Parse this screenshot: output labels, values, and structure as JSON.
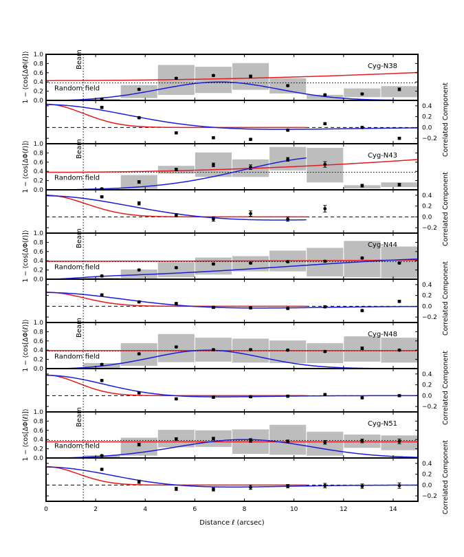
{
  "chart_data": {
    "type": "scatter",
    "xlabel": "Distance ℓ (arcsec)",
    "ylabel_left": "1 − ⟨cos[ΔΦ(ℓ)]⟩",
    "ylabel_right": "Correlated Component",
    "xlim": [
      0,
      15
    ],
    "xticks": [
      "0",
      "2",
      "4",
      "6",
      "8",
      "10",
      "12",
      "14"
    ],
    "top_ylim": [
      0,
      1.0
    ],
    "top_yticks": [
      "0.0",
      "0.2",
      "0.4",
      "0.6",
      "0.8",
      "1.0"
    ],
    "bottom_ylim": [
      -0.3,
      0.5
    ],
    "bottom_yticks": [
      "−0.2",
      "0.0",
      "0.2",
      "0.4"
    ],
    "beam_x": 1.5,
    "beam_label": "Beam",
    "random_field_label": "Random field",
    "random_field_level": 0.38,
    "bin_edges": [
      1.5,
      3.0,
      4.5,
      6.0,
      7.5,
      9.0,
      10.5,
      12.0,
      13.5,
      15.0
    ],
    "panels": [
      {
        "name": "Cyg-N38",
        "bars": [
          [
            0.0,
            0.03
          ],
          [
            0.05,
            0.33
          ],
          [
            0.12,
            0.77
          ],
          [
            0.16,
            0.73
          ],
          [
            0.23,
            0.81
          ],
          [
            0.15,
            0.48
          ],
          [
            0.03,
            0.12
          ],
          [
            0.07,
            0.26
          ],
          [
            0.07,
            0.31
          ]
        ],
        "points": [
          {
            "x": 2.25,
            "y": 0.03,
            "err": 0.02
          },
          {
            "x": 3.75,
            "y": 0.24,
            "err": 0.02
          },
          {
            "x": 5.25,
            "y": 0.48,
            "err": 0.02
          },
          {
            "x": 6.75,
            "y": 0.54,
            "err": 0.02
          },
          {
            "x": 8.25,
            "y": 0.52,
            "err": 0.03
          },
          {
            "x": 9.75,
            "y": 0.32,
            "err": 0.02
          },
          {
            "x": 11.25,
            "y": 0.12,
            "err": 0.02
          },
          {
            "x": 12.75,
            "y": 0.14,
            "err": 0.02
          },
          {
            "x": 14.25,
            "y": 0.24,
            "err": 0.03
          }
        ],
        "red_fit": {
          "c": 0.43,
          "a": 0.05,
          "s": 8
        },
        "blue_fit": {
          "peak": 0.4,
          "mu": 7.0,
          "sigma": 2.4,
          "x_end": 15
        },
        "residuals": [
          {
            "x": 2.25,
            "y": 0.37,
            "err": 0.02
          },
          {
            "x": 3.75,
            "y": 0.18,
            "err": 0.02
          },
          {
            "x": 5.25,
            "y": -0.1,
            "err": 0.02
          },
          {
            "x": 6.75,
            "y": -0.19,
            "err": 0.02
          },
          {
            "x": 8.25,
            "y": -0.22,
            "err": 0.02
          },
          {
            "x": 9.75,
            "y": -0.05,
            "err": 0.02
          },
          {
            "x": 11.25,
            "y": 0.07,
            "err": 0.02
          },
          {
            "x": 12.75,
            "y": 0.0,
            "err": 0.02
          },
          {
            "x": 14.25,
            "y": -0.2,
            "err": 0.02
          }
        ],
        "red_resid": {
          "amp": 0.43,
          "sigma": 1.5
        },
        "blue_resid": {
          "amp": 0.43,
          "sigma": 3.2,
          "dip": 0.045,
          "x_end": 15
        }
      },
      {
        "name": "Cyg-N43",
        "bars": [
          [
            0.0,
            0.03
          ],
          [
            0.02,
            0.32
          ],
          [
            0.35,
            0.52
          ],
          [
            0.28,
            0.81
          ],
          [
            0.28,
            0.66
          ],
          [
            0.42,
            0.93
          ],
          [
            0.16,
            0.91
          ],
          [
            0.03,
            0.1
          ],
          [
            0.06,
            0.16
          ]
        ],
        "points": [
          {
            "x": 2.25,
            "y": 0.02,
            "err": 0.02
          },
          {
            "x": 3.75,
            "y": 0.17,
            "err": 0.03
          },
          {
            "x": 5.25,
            "y": 0.44,
            "err": 0.03
          },
          {
            "x": 6.75,
            "y": 0.54,
            "err": 0.04
          },
          {
            "x": 8.25,
            "y": 0.49,
            "err": 0.05
          },
          {
            "x": 9.75,
            "y": 0.66,
            "err": 0.04
          },
          {
            "x": 11.25,
            "y": 0.55,
            "err": 0.06
          },
          {
            "x": 12.75,
            "y": 0.09,
            "err": 0.03
          },
          {
            "x": 14.25,
            "y": 0.11,
            "err": 0.03
          }
        ],
        "red_fit": {
          "c": 0.38,
          "a": 0.4,
          "s": 18
        },
        "blue_fit": {
          "peak": 0.72,
          "mu": 11.5,
          "sigma": 3.5,
          "x_end": 10.5
        },
        "residuals": [
          {
            "x": 2.25,
            "y": 0.37,
            "err": 0.02
          },
          {
            "x": 3.75,
            "y": 0.25,
            "err": 0.03
          },
          {
            "x": 5.25,
            "y": 0.03,
            "err": 0.03
          },
          {
            "x": 6.75,
            "y": -0.04,
            "err": 0.04
          },
          {
            "x": 8.25,
            "y": 0.06,
            "err": 0.05
          },
          {
            "x": 9.75,
            "y": -0.04,
            "err": 0.04
          },
          {
            "x": 11.25,
            "y": 0.15,
            "err": 0.06
          }
        ],
        "red_resid": {
          "amp": 0.4,
          "sigma": 1.6
        },
        "blue_resid": {
          "amp": 0.4,
          "sigma": 3.3,
          "dip": 0.07,
          "x_end": 10.5
        }
      },
      {
        "name": "Cyg-N44",
        "bars": [
          [
            0.0,
            0.03
          ],
          [
            0.02,
            0.21
          ],
          [
            0.04,
            0.37
          ],
          [
            0.1,
            0.47
          ],
          [
            0.17,
            0.5
          ],
          [
            0.17,
            0.62
          ],
          [
            0.06,
            0.68
          ],
          [
            0.04,
            0.83
          ],
          [
            0.03,
            0.71
          ]
        ],
        "points": [
          {
            "x": 2.25,
            "y": 0.07,
            "err": 0.02
          },
          {
            "x": 3.75,
            "y": 0.2,
            "err": 0.02
          },
          {
            "x": 5.25,
            "y": 0.25,
            "err": 0.02
          },
          {
            "x": 6.75,
            "y": 0.33,
            "err": 0.02
          },
          {
            "x": 8.25,
            "y": 0.35,
            "err": 0.02
          },
          {
            "x": 9.75,
            "y": 0.38,
            "err": 0.02
          },
          {
            "x": 11.25,
            "y": 0.39,
            "err": 0.02
          },
          {
            "x": 12.75,
            "y": 0.46,
            "err": 0.02
          },
          {
            "x": 14.25,
            "y": 0.35,
            "err": 0.02
          }
        ],
        "red_fit": {
          "c": 0.39,
          "a": 0.1,
          "s": 30
        },
        "blue_fit": {
          "peak": 0.47,
          "mu": 18,
          "sigma": 8,
          "x_end": 15
        },
        "residuals": [
          {
            "x": 2.25,
            "y": 0.21,
            "err": 0.02
          },
          {
            "x": 3.75,
            "y": 0.08,
            "err": 0.02
          },
          {
            "x": 5.25,
            "y": 0.05,
            "err": 0.02
          },
          {
            "x": 6.75,
            "y": -0.02,
            "err": 0.02
          },
          {
            "x": 8.25,
            "y": -0.03,
            "err": 0.02
          },
          {
            "x": 9.75,
            "y": -0.04,
            "err": 0.02
          },
          {
            "x": 11.25,
            "y": -0.01,
            "err": 0.02
          },
          {
            "x": 12.75,
            "y": -0.08,
            "err": 0.02
          },
          {
            "x": 14.25,
            "y": 0.09,
            "err": 0.02
          }
        ],
        "red_resid": {
          "amp": 0.26,
          "sigma": 1.5
        },
        "blue_resid": {
          "amp": 0.26,
          "sigma": 3.0,
          "dip": 0.04,
          "x_end": 15
        }
      },
      {
        "name": "Cyg-N48",
        "bars": [
          [
            0.0,
            0.12
          ],
          [
            0.06,
            0.55
          ],
          [
            0.14,
            0.75
          ],
          [
            0.15,
            0.67
          ],
          [
            0.13,
            0.65
          ],
          [
            0.12,
            0.61
          ],
          [
            0.12,
            0.55
          ],
          [
            0.15,
            0.7
          ],
          [
            0.13,
            0.67
          ]
        ],
        "points": [
          {
            "x": 2.25,
            "y": 0.09,
            "err": 0.02
          },
          {
            "x": 3.75,
            "y": 0.32,
            "err": 0.02
          },
          {
            "x": 5.25,
            "y": 0.47,
            "err": 0.02
          },
          {
            "x": 6.75,
            "y": 0.41,
            "err": 0.02
          },
          {
            "x": 8.25,
            "y": 0.41,
            "err": 0.02
          },
          {
            "x": 9.75,
            "y": 0.4,
            "err": 0.02
          },
          {
            "x": 11.25,
            "y": 0.37,
            "err": 0.02
          },
          {
            "x": 12.75,
            "y": 0.44,
            "err": 0.03
          },
          {
            "x": 14.25,
            "y": 0.4,
            "err": 0.02
          }
        ],
        "red_fit": {
          "c": 0.39,
          "a": 0.0,
          "s": 10
        },
        "blue_fit": {
          "peak": 0.4,
          "mu": 6.5,
          "sigma": 2.2,
          "x_end": 15
        },
        "residuals": [
          {
            "x": 2.25,
            "y": 0.28,
            "err": 0.02
          },
          {
            "x": 3.75,
            "y": 0.05,
            "err": 0.02
          },
          {
            "x": 5.25,
            "y": -0.06,
            "err": 0.02
          },
          {
            "x": 6.75,
            "y": -0.03,
            "err": 0.02
          },
          {
            "x": 8.25,
            "y": -0.02,
            "err": 0.02
          },
          {
            "x": 9.75,
            "y": -0.01,
            "err": 0.02
          },
          {
            "x": 11.25,
            "y": 0.02,
            "err": 0.02
          },
          {
            "x": 12.75,
            "y": -0.04,
            "err": 0.02
          },
          {
            "x": 14.25,
            "y": 0.0,
            "err": 0.02
          }
        ],
        "red_resid": {
          "amp": 0.38,
          "sigma": 1.3
        },
        "blue_resid": {
          "amp": 0.38,
          "sigma": 2.3,
          "dip": 0.03,
          "x_end": 15
        }
      },
      {
        "name": "Cyg-N51",
        "bars": [
          [
            0.0,
            0.06
          ],
          [
            0.05,
            0.44
          ],
          [
            0.23,
            0.61
          ],
          [
            0.24,
            0.6
          ],
          [
            0.09,
            0.62
          ],
          [
            0.07,
            0.72
          ],
          [
            0.05,
            0.57
          ],
          [
            0.22,
            0.51
          ],
          [
            0.17,
            0.49
          ]
        ],
        "points": [
          {
            "x": 2.25,
            "y": 0.05,
            "err": 0.02
          },
          {
            "x": 3.75,
            "y": 0.29,
            "err": 0.03
          },
          {
            "x": 5.25,
            "y": 0.41,
            "err": 0.03
          },
          {
            "x": 6.75,
            "y": 0.42,
            "err": 0.03
          },
          {
            "x": 8.25,
            "y": 0.38,
            "err": 0.04
          },
          {
            "x": 9.75,
            "y": 0.36,
            "err": 0.03
          },
          {
            "x": 11.25,
            "y": 0.34,
            "err": 0.04
          },
          {
            "x": 12.75,
            "y": 0.37,
            "err": 0.04
          },
          {
            "x": 14.25,
            "y": 0.36,
            "err": 0.05
          }
        ],
        "red_fit": {
          "c": 0.35,
          "a": 0.0,
          "s": 10
        },
        "blue_fit": {
          "peak": 0.4,
          "mu": 8.0,
          "sigma": 2.7,
          "x_end": 15
        },
        "residuals": [
          {
            "x": 2.25,
            "y": 0.29,
            "err": 0.02
          },
          {
            "x": 3.75,
            "y": 0.06,
            "err": 0.03
          },
          {
            "x": 5.25,
            "y": -0.07,
            "err": 0.03
          },
          {
            "x": 6.75,
            "y": -0.08,
            "err": 0.03
          },
          {
            "x": 8.25,
            "y": -0.04,
            "err": 0.04
          },
          {
            "x": 9.75,
            "y": -0.02,
            "err": 0.03
          },
          {
            "x": 11.25,
            "y": -0.01,
            "err": 0.04
          },
          {
            "x": 12.75,
            "y": -0.02,
            "err": 0.04
          },
          {
            "x": 14.25,
            "y": -0.01,
            "err": 0.05
          }
        ],
        "red_resid": {
          "amp": 0.34,
          "sigma": 1.3
        },
        "blue_resid": {
          "amp": 0.34,
          "sigma": 2.6,
          "dip": 0.045,
          "x_end": 15
        }
      }
    ]
  }
}
